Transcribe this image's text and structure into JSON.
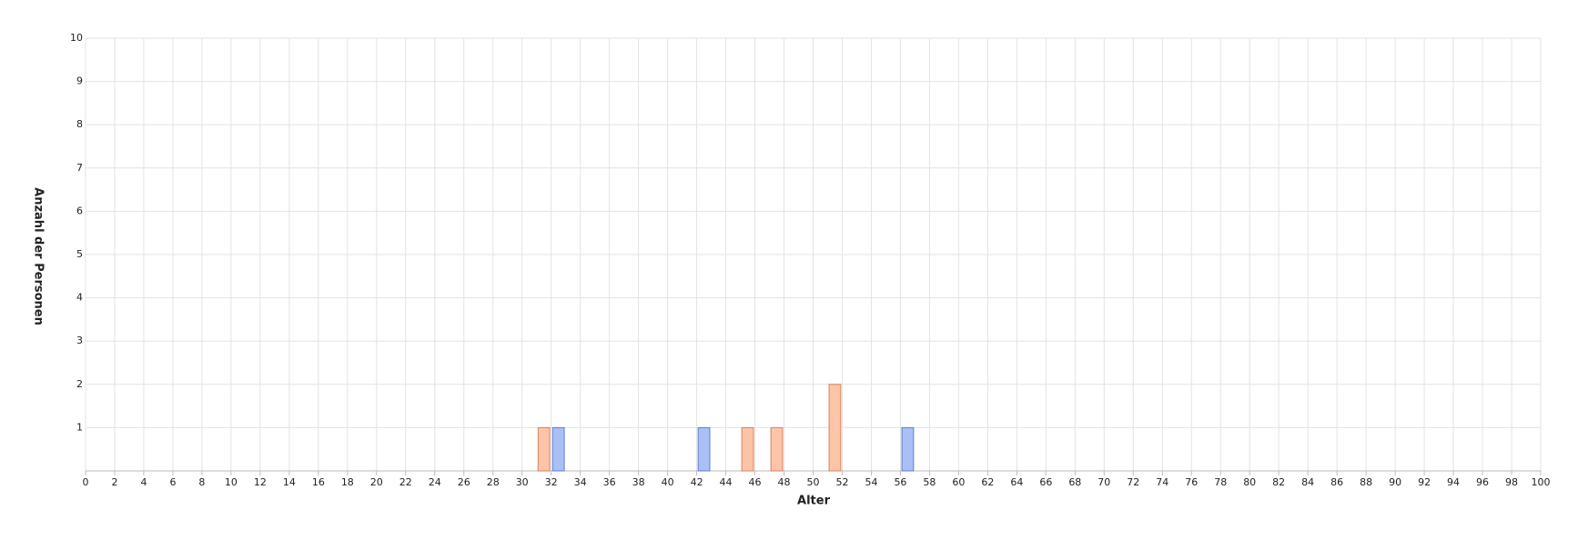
{
  "chart_data": {
    "type": "bar",
    "xlabel": "Alter",
    "ylabel": "Anzahl der Personen",
    "xlim": [
      0,
      100
    ],
    "ylim": [
      0,
      10
    ],
    "xticks": [
      0,
      2,
      4,
      6,
      8,
      10,
      12,
      14,
      16,
      18,
      20,
      22,
      24,
      26,
      28,
      30,
      32,
      34,
      36,
      38,
      40,
      42,
      44,
      46,
      48,
      50,
      52,
      54,
      56,
      58,
      60,
      62,
      64,
      66,
      68,
      70,
      72,
      74,
      76,
      78,
      80,
      82,
      84,
      86,
      88,
      90,
      92,
      94,
      96,
      98,
      100
    ],
    "yticks": [
      1,
      2,
      3,
      4,
      5,
      6,
      7,
      8,
      9,
      10
    ],
    "grid": true,
    "series": [
      {
        "color": "#fdc4a8",
        "edgecolor": "#d9825f",
        "x": [
          31,
          45,
          47,
          51
        ],
        "values": [
          1,
          1,
          1,
          2
        ]
      },
      {
        "color": "#aabff5",
        "edgecolor": "#5c7fd6",
        "x": [
          32,
          42,
          56
        ],
        "values": [
          1,
          1,
          1
        ]
      }
    ]
  }
}
